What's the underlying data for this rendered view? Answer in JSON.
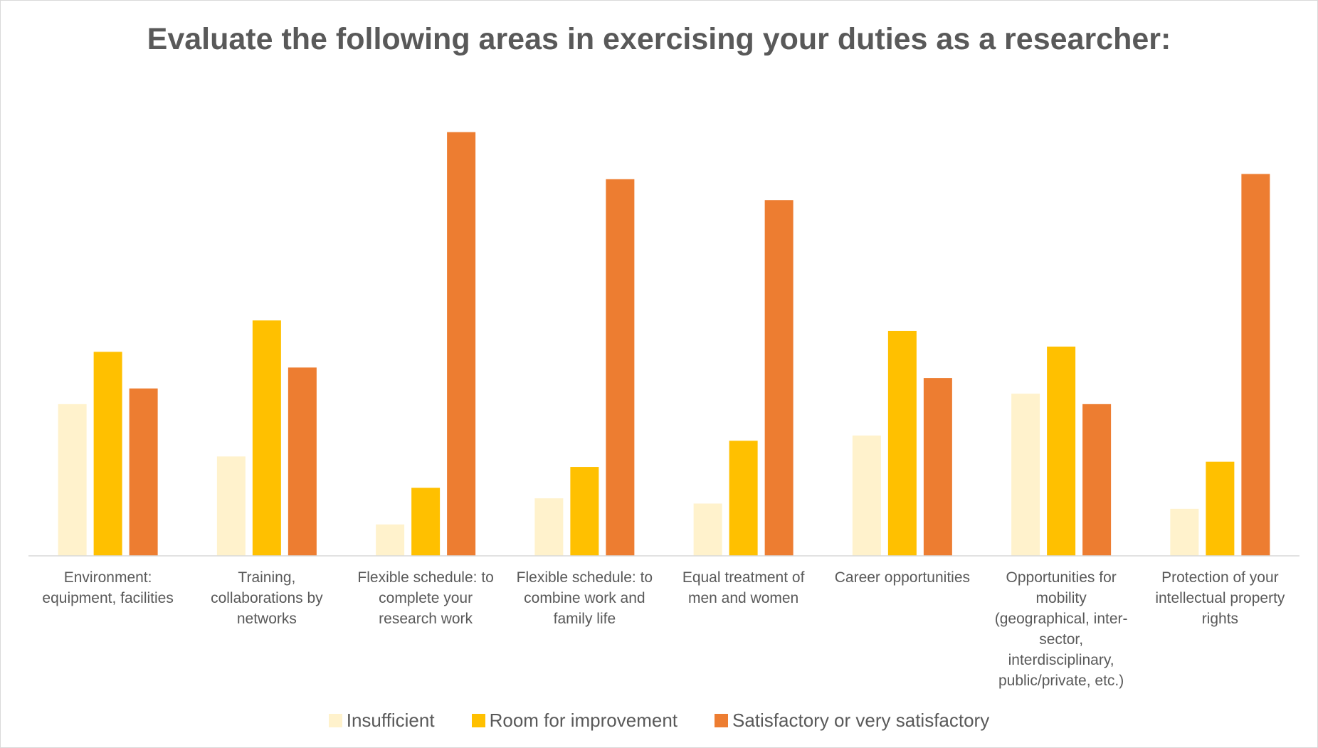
{
  "chart_data": {
    "type": "bar",
    "title": "Evaluate the following areas in exercising your duties as a researcher:",
    "categories": [
      "Environment: equipment, facilities",
      "Training, collaborations by networks",
      "Flexible schedule: to complete your research work",
      "Flexible schedule: to combine work and family life",
      "Equal treatment of men and women",
      "Career opportunities",
      "Opportunities for mobility (geographical, inter-sector, interdisciplinary, public/private, etc.)",
      "Protection of your intellectual property rights"
    ],
    "series": [
      {
        "name": "Insufficient",
        "color": "#fff2cc",
        "values": [
          29,
          19,
          6,
          11,
          10,
          23,
          31,
          9
        ]
      },
      {
        "name": "Room for improvement",
        "color": "#ffc000",
        "values": [
          39,
          45,
          13,
          17,
          22,
          43,
          40,
          18
        ]
      },
      {
        "name": "Satisfactory or very satisfactory",
        "color": "#ed7d31",
        "values": [
          32,
          36,
          81,
          72,
          68,
          34,
          29,
          73
        ]
      }
    ],
    "ylim": [
      0,
      100
    ]
  }
}
